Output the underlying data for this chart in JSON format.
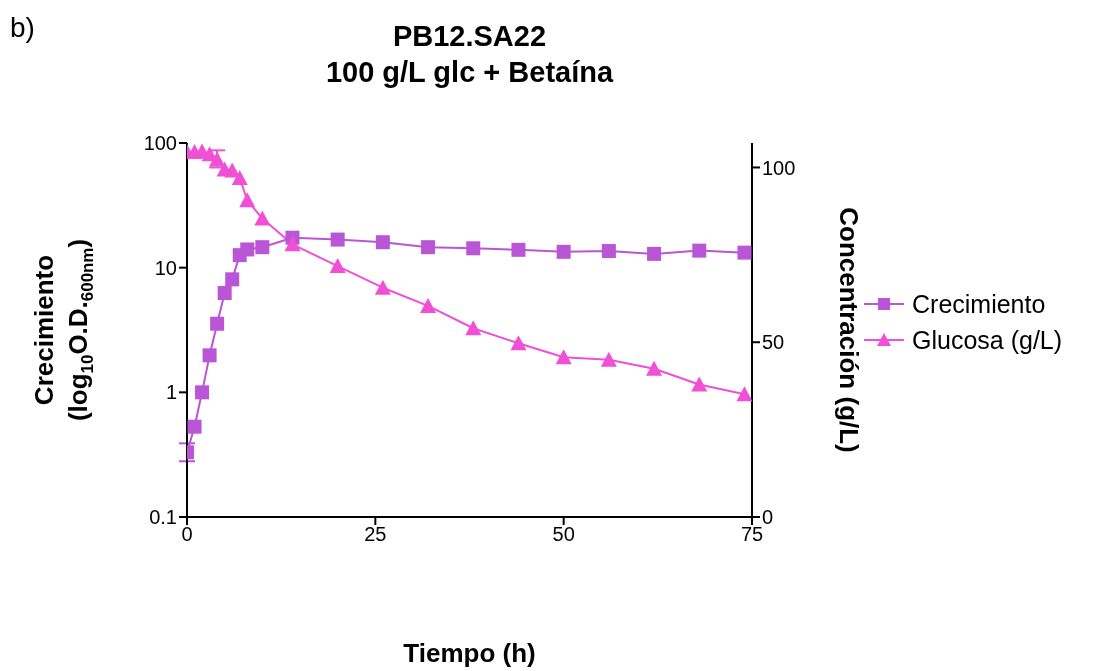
{
  "chart_data": {
    "type": "line",
    "title": "PB12.SA22\n100 g/L glc + Betaína",
    "xlabel": "Tiempo (h)",
    "ylabel": "Crecimiento\n(log$_{10}$O.D.$_{600nm}$)",
    "y2label": "Concentración (g/L)",
    "annotations": [
      "b)"
    ],
    "x": [
      0,
      1,
      2,
      3,
      4,
      5,
      6,
      7,
      8,
      10,
      14,
      20,
      26,
      32,
      38,
      44,
      50,
      56,
      62,
      68,
      74
    ],
    "series": [
      {
        "name": "Crecimiento",
        "color": "#b956d6",
        "marker": "square",
        "values": [
          0.33,
          0.53,
          1.0,
          1.98,
          3.55,
          6.26,
          8.06,
          12.6,
          14.0,
          14.6,
          17.4,
          16.8,
          16.0,
          14.6,
          14.3,
          13.9,
          13.4,
          13.6,
          12.9,
          13.7,
          13.2
        ],
        "errors": [
          [
            0.28,
            0.39
          ],
          null,
          null,
          null,
          null,
          null,
          null,
          null,
          null,
          null,
          null,
          null,
          null,
          null,
          null,
          null,
          null,
          null,
          null,
          null,
          null
        ]
      },
      {
        "name": "Glucosa (g/L)",
        "color": "#f04fd6",
        "marker": "triangle",
        "axis": "y2",
        "values": [
          104.4,
          104.4,
          104.6,
          103.8,
          102.3,
          99.4,
          99.1,
          97.0,
          90.6,
          85.4,
          78.0,
          71.8,
          65.6,
          60.4,
          54.0,
          49.7,
          45.7,
          45.0,
          42.4,
          37.9,
          35.1
        ],
        "errors": [
          null,
          null,
          null,
          null,
          [
            100.0,
            104.9
          ],
          null,
          null,
          null,
          null,
          null,
          null,
          null,
          null,
          null,
          null,
          null,
          null,
          null,
          null,
          null,
          null
        ]
      }
    ],
    "xlim": [
      0,
      75
    ],
    "xticks": [
      0,
      25,
      50,
      75
    ],
    "log": "y",
    "ylim": [
      0.1,
      100
    ],
    "yticks": [
      0.1,
      1,
      10,
      100
    ],
    "y2lim": [
      0,
      107
    ],
    "y2ticks": [
      0,
      50,
      100
    ],
    "grid": false,
    "legend": "right",
    "line_style": "solid"
  }
}
